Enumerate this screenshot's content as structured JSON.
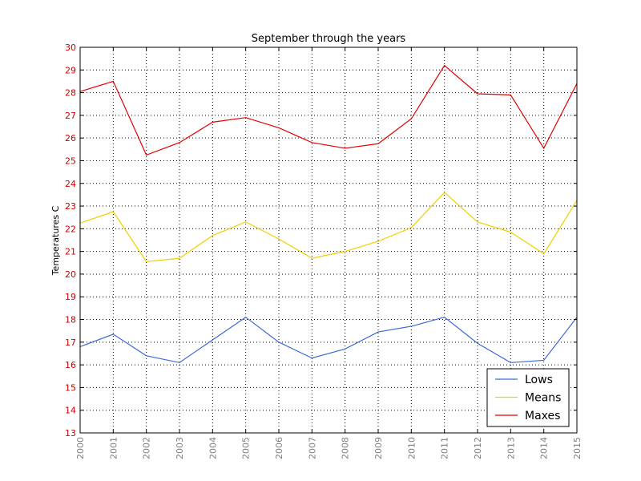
{
  "chart_data": {
    "type": "line",
    "title": "September through the years",
    "xlabel": "",
    "ylabel": "Temperatures C",
    "x": [
      2000,
      2001,
      2002,
      2003,
      2004,
      2005,
      2006,
      2007,
      2008,
      2009,
      2010,
      2011,
      2012,
      2013,
      2014,
      2015
    ],
    "xlim": [
      2000,
      2015
    ],
    "ylim": [
      13,
      30
    ],
    "yticks": [
      13,
      14,
      15,
      16,
      17,
      18,
      19,
      20,
      21,
      22,
      23,
      24,
      25,
      26,
      27,
      28,
      29,
      30
    ],
    "grid": true,
    "legend": "lower-right",
    "tick_colors": {
      "y": "#cc0000",
      "x": "#808080"
    },
    "series": [
      {
        "name": "Lows",
        "color": "#3a6ad6",
        "values": [
          16.8,
          17.35,
          16.4,
          16.1,
          17.1,
          18.1,
          17.0,
          16.3,
          16.7,
          17.45,
          17.7,
          18.1,
          16.95,
          16.1,
          16.2,
          18.1
        ]
      },
      {
        "name": "Means",
        "color": "#f0d000",
        "values": [
          22.25,
          22.75,
          20.55,
          20.7,
          21.7,
          22.3,
          21.55,
          20.7,
          21.0,
          21.45,
          22.05,
          23.6,
          22.3,
          21.85,
          20.9,
          23.25
        ]
      },
      {
        "name": "Maxes",
        "color": "#e00000",
        "values": [
          28.05,
          28.5,
          25.25,
          25.8,
          26.7,
          26.9,
          26.45,
          25.8,
          25.55,
          25.75,
          26.85,
          29.2,
          27.95,
          27.9,
          25.55,
          28.4
        ]
      }
    ]
  }
}
